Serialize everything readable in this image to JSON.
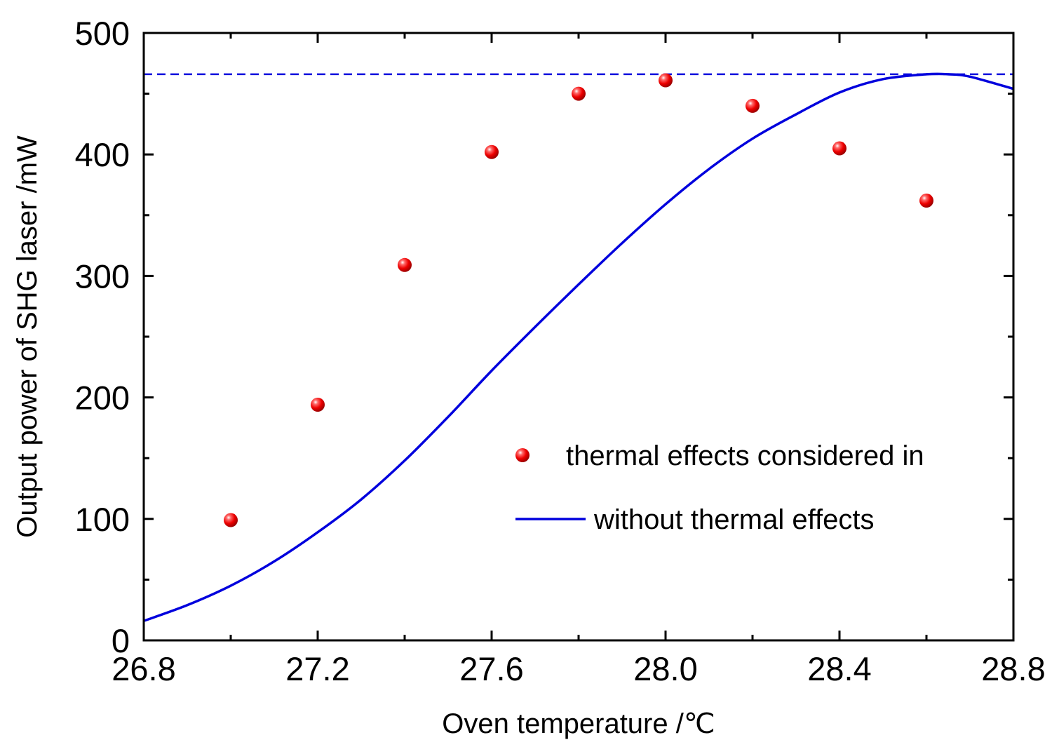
{
  "chart_data": {
    "type": "scatter",
    "xlabel": "Oven temperature /℃",
    "ylabel": "Output power of SHG laser /mW",
    "xlim": [
      26.8,
      28.8
    ],
    "ylim": [
      0,
      500
    ],
    "x_ticks": [
      26.8,
      27.2,
      27.6,
      28.0,
      28.4,
      28.8
    ],
    "x_tick_labels": [
      "26.8",
      "27.2",
      "27.6",
      "28.0",
      "28.4",
      "28.8"
    ],
    "y_ticks": [
      0,
      100,
      200,
      300,
      400,
      500
    ],
    "y_tick_labels": [
      "0",
      "100",
      "200",
      "300",
      "400",
      "500"
    ],
    "grid": false,
    "legend_position": "center-right",
    "series": [
      {
        "name": "thermal effects considered in",
        "kind": "scatter",
        "color": "#ff0000",
        "x": [
          27.0,
          27.2,
          27.4,
          27.6,
          27.8,
          28.0,
          28.2,
          28.4,
          28.6
        ],
        "y": [
          99,
          194,
          309,
          402,
          450,
          461,
          440,
          405,
          362
        ]
      },
      {
        "name": "without thermal effects",
        "kind": "line",
        "color": "#0000dd",
        "x": [
          26.8,
          26.9,
          27.0,
          27.1,
          27.2,
          27.3,
          27.4,
          27.5,
          27.6,
          27.7,
          27.8,
          27.9,
          28.0,
          28.1,
          28.2,
          28.3,
          28.4,
          28.5,
          28.6,
          28.65,
          28.7,
          28.8
        ],
        "y": [
          16,
          29,
          45,
          65,
          89,
          116,
          148,
          184,
          222,
          258,
          293,
          327,
          359,
          388,
          413,
          433,
          451,
          462,
          466,
          466,
          464,
          454
        ]
      },
      {
        "kind": "reference-line",
        "color": "#0000dd",
        "y": 466
      }
    ]
  }
}
